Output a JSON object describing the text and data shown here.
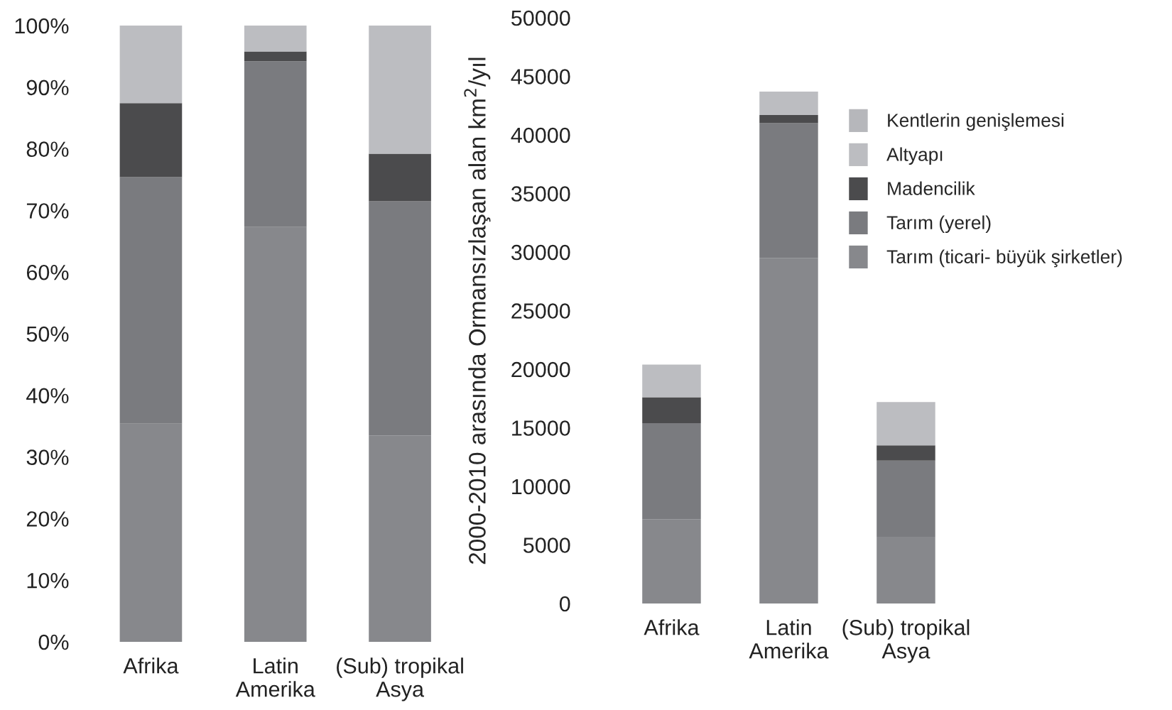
{
  "chart_data": [
    {
      "type": "bar",
      "stacked": true,
      "categories": [
        "Afrika",
        "Latin\nAmerika",
        "(Sub) tropikal\nAsya"
      ],
      "series": [
        {
          "color": "#87888c",
          "values": [
            35.4,
            67.3,
            33.5
          ]
        },
        {
          "color": "#7a7b7f",
          "values": [
            40,
            26.9,
            38
          ]
        },
        {
          "color": "#4b4b4d",
          "values": [
            12,
            1.6,
            7.7
          ]
        },
        {
          "color": "#bcbdc1",
          "values": [
            12.6,
            4.2,
            20.8
          ]
        }
      ],
      "ylim": [
        0,
        100
      ],
      "yticks": [
        {
          "value": 0,
          "label": "0%"
        },
        {
          "value": 10,
          "label": "10%"
        },
        {
          "value": 20,
          "label": "20%"
        },
        {
          "value": 30,
          "label": "30%"
        },
        {
          "value": 40,
          "label": "40%"
        },
        {
          "value": 50,
          "label": "50%"
        },
        {
          "value": 60,
          "label": "60%"
        },
        {
          "value": 70,
          "label": "70%"
        },
        {
          "value": 80,
          "label": "80%"
        },
        {
          "value": 90,
          "label": "90%"
        },
        {
          "value": 100,
          "label": "100%"
        }
      ],
      "grid": false,
      "legend": false
    },
    {
      "type": "bar",
      "stacked": true,
      "categories": [
        "Afrika",
        "Latin\nAmerika",
        "(Sub) tropikal\nAsya"
      ],
      "ylabel": "2000-2010 arasında Ormansızlaşan alan km$^{2}$/yıl",
      "series": [
        {
          "name": "Tarım (ticari- büyük şirketler)",
          "color": "#87888c",
          "values": [
            7200,
            29500,
            5700
          ]
        },
        {
          "name": "Tarım (yerel)",
          "color": "#7a7b7f",
          "values": [
            8200,
            11500,
            6500
          ]
        },
        {
          "name": "Madencilik",
          "color": "#4b4b4d",
          "values": [
            2200,
            700,
            1300
          ]
        },
        {
          "name": "Altyapı",
          "color": "#bcbdc1",
          "values": [
            2800,
            2000,
            3700
          ]
        },
        {
          "name": "Kentlerin genişlemesi",
          "color": "#b6b7bb",
          "values": [
            null,
            null,
            null
          ]
        }
      ],
      "ylim": [
        0,
        50000
      ],
      "yticks": [
        0,
        5000,
        10000,
        15000,
        20000,
        25000,
        30000,
        35000,
        40000,
        45000,
        50000
      ],
      "grid": false,
      "legend": "top right"
    }
  ]
}
